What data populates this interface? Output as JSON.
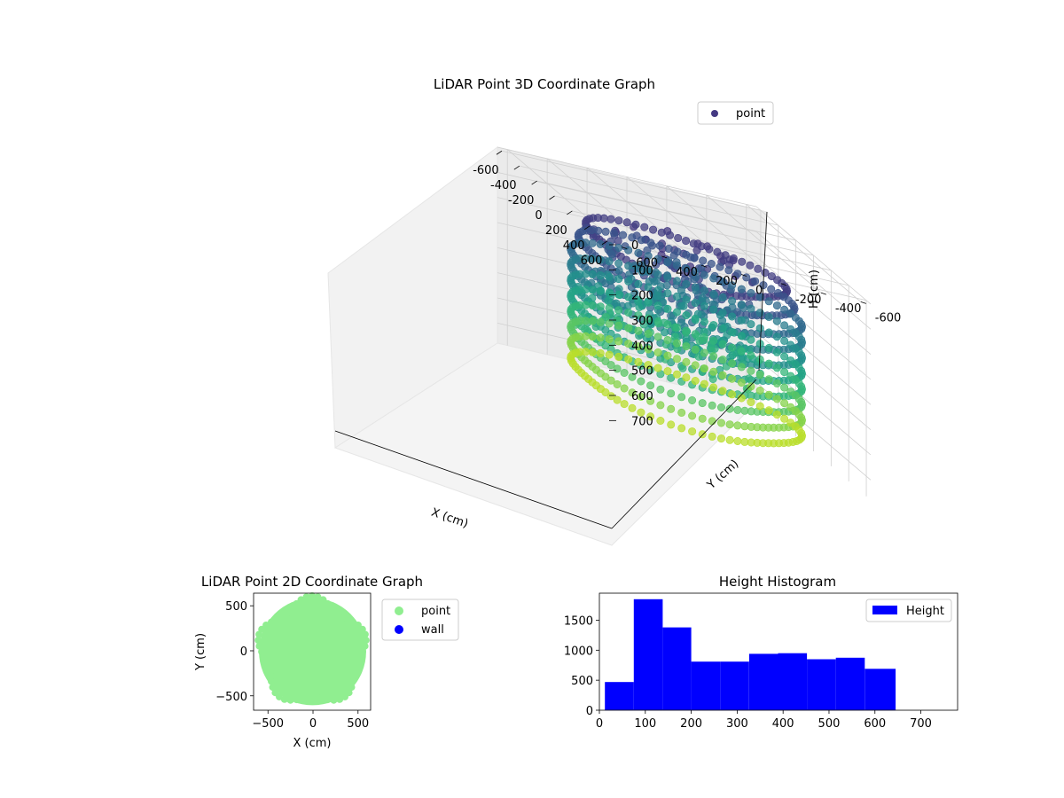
{
  "chart_data": [
    {
      "type": "scatter",
      "title": "LiDAR Point 3D Coordinate Graph",
      "xlabel": "X (cm)",
      "ylabel": "Y (cm)",
      "zlabel": "H (cm)",
      "legend": {
        "entries": [
          "point"
        ],
        "placement": "top-right"
      },
      "x_ticks": [
        "-600",
        "-400",
        "-200",
        "0",
        "200",
        "400",
        "600"
      ],
      "y_ticks": [
        "-600",
        "-400",
        "-200",
        "0",
        "200",
        "400",
        "600"
      ],
      "z_ticks": [
        "0",
        "100",
        "200",
        "300",
        "400",
        "500",
        "600",
        "700"
      ],
      "xlim": [
        -650,
        650
      ],
      "ylim": [
        -650,
        650
      ],
      "zlim": [
        0,
        780
      ],
      "z_axis_inverted": true,
      "colormap": "viridis",
      "grid": true,
      "point_color": "#443983"
    },
    {
      "type": "scatter",
      "title": "LiDAR Point 2D Coordinate Graph",
      "xlabel": "X (cm)",
      "ylabel": "Y (cm)",
      "x_ticks": [
        "−500",
        "0",
        "500"
      ],
      "y_ticks": [
        "−500",
        "0",
        "500"
      ],
      "xlim": [
        -660,
        640
      ],
      "ylim": [
        -660,
        640
      ],
      "legend": {
        "entries": [
          "point",
          "wall"
        ],
        "placement": "outside-right"
      },
      "series": [
        {
          "name": "point",
          "color": "#90ee90"
        },
        {
          "name": "wall",
          "color": "#0000ff"
        }
      ],
      "grid": false
    },
    {
      "type": "bar",
      "title": "Height Histogram",
      "xlabel": "",
      "ylabel": "",
      "bins": [
        [
          12,
          75
        ],
        [
          75,
          138
        ],
        [
          138,
          200
        ],
        [
          200,
          263
        ],
        [
          263,
          326
        ],
        [
          326,
          389
        ],
        [
          389,
          452
        ],
        [
          452,
          515
        ],
        [
          515,
          578
        ],
        [
          578,
          645
        ]
      ],
      "values": [
        470,
        1850,
        1380,
        810,
        810,
        940,
        950,
        850,
        875,
        690
      ],
      "xlim": [
        0,
        780
      ],
      "ylim": [
        0,
        1950
      ],
      "x_ticks": [
        "0",
        "100",
        "200",
        "300",
        "400",
        "500",
        "600",
        "700"
      ],
      "y_ticks": [
        "0",
        "500",
        "1000",
        "1500"
      ],
      "legend": {
        "entries": [
          "Height"
        ],
        "placement": "top-right"
      },
      "color": "#0000ff",
      "grid": false
    }
  ]
}
